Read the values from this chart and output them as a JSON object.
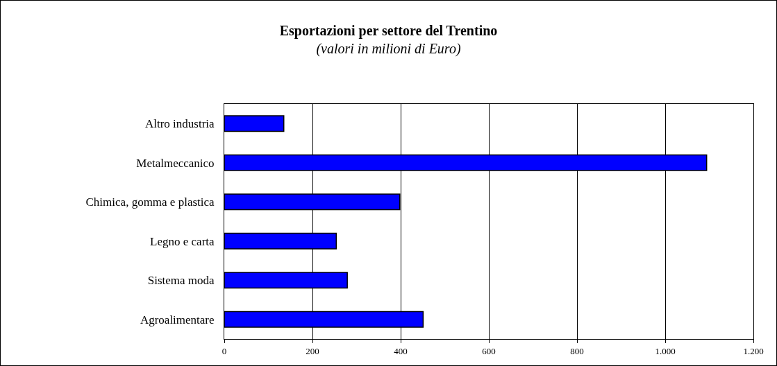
{
  "chart_data": {
    "type": "bar",
    "orientation": "horizontal",
    "title": "Esportazioni per settore del Trentino",
    "subtitle": "(valori in milioni di Euro)",
    "categories": [
      "Altro industria",
      "Metalmeccanico",
      "Chimica, gomma e plastica",
      "Legno e carta",
      "Sistema moda",
      "Agroalimentare"
    ],
    "values": [
      135,
      1094,
      398,
      254,
      279,
      451
    ],
    "color": "#0000ff",
    "xlim": [
      0,
      1200
    ],
    "xticks": [
      0,
      200,
      400,
      600,
      800,
      {
        "value": 1000,
        "label": "1.000"
      },
      {
        "value": 1200,
        "label": "1.200"
      }
    ],
    "grid": "x"
  }
}
